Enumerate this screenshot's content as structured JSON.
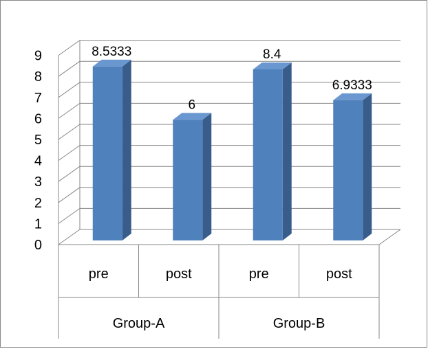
{
  "chart_data": {
    "type": "bar",
    "title": "",
    "xlabel": "",
    "ylabel": "",
    "ylim": [
      0,
      9
    ],
    "yticks": [
      0,
      1,
      2,
      3,
      4,
      5,
      6,
      7,
      8,
      9
    ],
    "grid": true,
    "legend": "none",
    "style": "3d-column",
    "groups": [
      {
        "name": "Group-A",
        "categories": [
          "pre",
          "post"
        ]
      },
      {
        "name": "Group-B",
        "categories": [
          "pre",
          "post"
        ]
      }
    ],
    "categories": [
      "pre",
      "post",
      "pre",
      "post"
    ],
    "values": [
      8.5333,
      6,
      8.4,
      6.9333
    ],
    "data_labels": [
      "8.5333",
      "6",
      "8.4",
      "6.9333"
    ],
    "colors": {
      "bar_front": "#4f81bd",
      "bar_side": "#385d8a",
      "bar_top": "#6a97cf",
      "gridline": "#868686",
      "axis": "#868686"
    }
  }
}
